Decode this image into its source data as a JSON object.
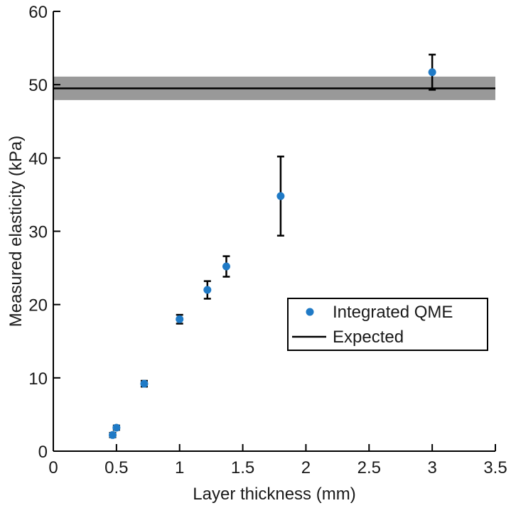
{
  "chart_data": {
    "type": "scatter",
    "title": "",
    "xlabel": "Layer thickness (mm)",
    "ylabel": "Measured elasticity (kPa)",
    "xlim": [
      0,
      3.5
    ],
    "ylim": [
      0,
      60
    ],
    "xticks": [
      0,
      0.5,
      1,
      1.5,
      2,
      2.5,
      3,
      3.5
    ],
    "xtick_labels": [
      "0",
      "0.5",
      "1",
      "1.5",
      "2",
      "2.5",
      "3",
      "3.5"
    ],
    "yticks": [
      0,
      10,
      20,
      30,
      40,
      50,
      60
    ],
    "ytick_labels": [
      "0",
      "10",
      "20",
      "30",
      "40",
      "50",
      "60"
    ],
    "grid": false,
    "legend_position": "center-right",
    "series": [
      {
        "name": "Integrated QME",
        "kind": "scatter",
        "color": "#1f7ac6",
        "points": [
          {
            "x": 0.47,
            "y": 2.2,
            "err": 0.3
          },
          {
            "x": 0.5,
            "y": 3.2,
            "err": 0.3
          },
          {
            "x": 0.72,
            "y": 9.2,
            "err": 0.4
          },
          {
            "x": 1.0,
            "y": 18.0,
            "err": 0.6
          },
          {
            "x": 1.22,
            "y": 22.0,
            "err": 1.2
          },
          {
            "x": 1.37,
            "y": 25.2,
            "err": 1.4
          },
          {
            "x": 1.8,
            "y": 34.8,
            "err": 5.4
          },
          {
            "x": 3.0,
            "y": 51.7,
            "err": 2.4
          }
        ]
      },
      {
        "name": "Expected",
        "kind": "hline",
        "color": "#000000",
        "y": 49.5,
        "band": [
          47.9,
          51.1
        ],
        "band_color": "#999999"
      }
    ]
  }
}
